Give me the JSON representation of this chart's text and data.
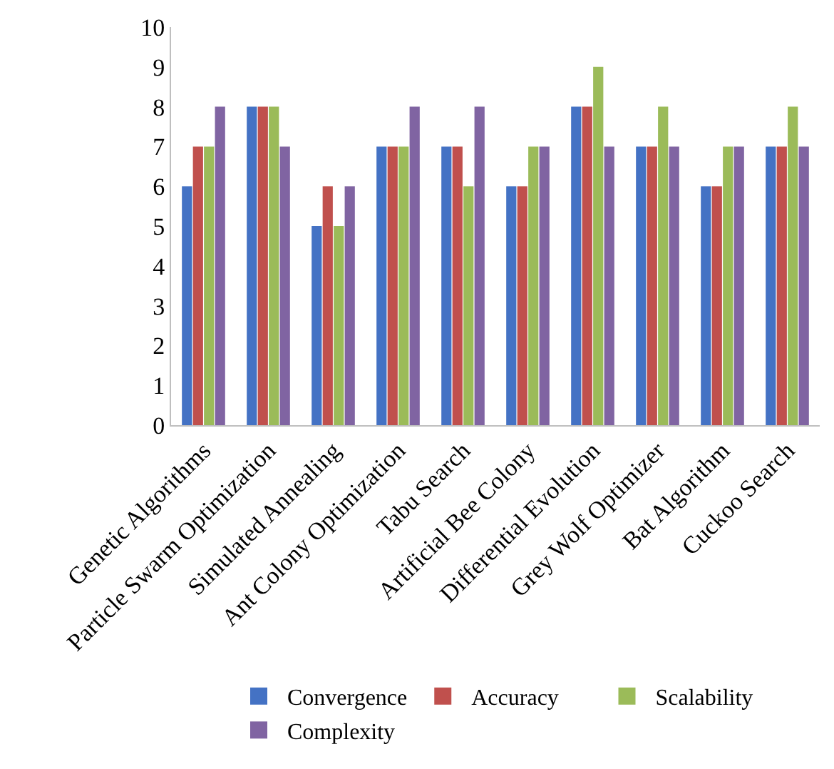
{
  "chart_data": {
    "type": "bar",
    "categories": [
      "Genetic Algorithms",
      "Particle Swarm Optimization",
      "Simulated Annealing",
      "Ant Colony Optimization",
      "Tabu Search",
      "Artificial Bee Colony",
      "Differential Evolution",
      "Grey Wolf Optimizer",
      "Bat Algorithm",
      "Cuckoo Search"
    ],
    "series": [
      {
        "name": "Convergence",
        "color": "#4472c4",
        "values": [
          6,
          8,
          5,
          7,
          7,
          6,
          8,
          7,
          6,
          7
        ]
      },
      {
        "name": "Accuracy",
        "color": "#c0504d",
        "values": [
          7,
          8,
          6,
          7,
          7,
          6,
          8,
          7,
          6,
          7
        ]
      },
      {
        "name": "Scalability",
        "color": "#9bbb59",
        "values": [
          7,
          8,
          5,
          7,
          6,
          7,
          9,
          8,
          7,
          8
        ]
      },
      {
        "name": "Complexity",
        "color": "#8064a2",
        "values": [
          8,
          7,
          6,
          8,
          8,
          7,
          7,
          7,
          7,
          7
        ]
      }
    ],
    "ylim": [
      0,
      10
    ],
    "yticks": [
      0,
      1,
      2,
      3,
      4,
      5,
      6,
      7,
      8,
      9,
      10
    ],
    "grid": false,
    "legend": "bottom"
  }
}
